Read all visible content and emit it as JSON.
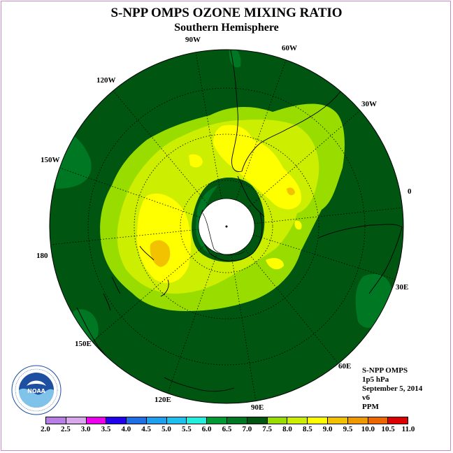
{
  "title": "S-NPP OMPS OZONE MIXING RATIO",
  "subtitle": "Southern Hemisphere",
  "longitude_labels": [
    "90W",
    "60W",
    "30W",
    "0",
    "30E",
    "60E",
    "90E",
    "120E",
    "150E",
    "180",
    "150W",
    "120W"
  ],
  "info": {
    "instrument": "S-NPP OMPS",
    "level": "1p5 hPa",
    "date": "September 5, 2014",
    "version": "v6",
    "units": "PPM"
  },
  "colorbar": {
    "ticks": [
      "2.0",
      "2.5",
      "3.0",
      "3.5",
      "4.0",
      "4.5",
      "5.0",
      "5.5",
      "6.0",
      "6.5",
      "7.0",
      "7.5",
      "8.0",
      "8.5",
      "9.0",
      "9.5",
      "10.0",
      "10.5",
      "11.0"
    ],
    "colors": [
      "#b77ee6",
      "#d9a7ec",
      "#ee00ee",
      "#2200ee",
      "#1e6ee6",
      "#1e9ff0",
      "#1ec0f0",
      "#22eedd",
      "#009933",
      "#007722",
      "#005511",
      "#99dd00",
      "#ccee00",
      "#ffff00",
      "#f2c200",
      "#ee9900",
      "#ee6600",
      "#dd0000",
      "#7a4a2e"
    ]
  },
  "map_colors": {
    "background": "#005511",
    "band_6_5": "#007722",
    "band_7_0": "#99dd00",
    "band_7_5": "#ccee00",
    "band_8_0": "#ffff00",
    "band_8_5": "#f2c200",
    "pole_gap": "#ffffff"
  },
  "logo": {
    "name": "noaa-logo",
    "text": "NOAA",
    "ring_text": "NATIONAL OCEANIC AND ATMOSPHERIC ADMINISTRATION · U.S. DEPARTMENT OF COMMERCE"
  }
}
